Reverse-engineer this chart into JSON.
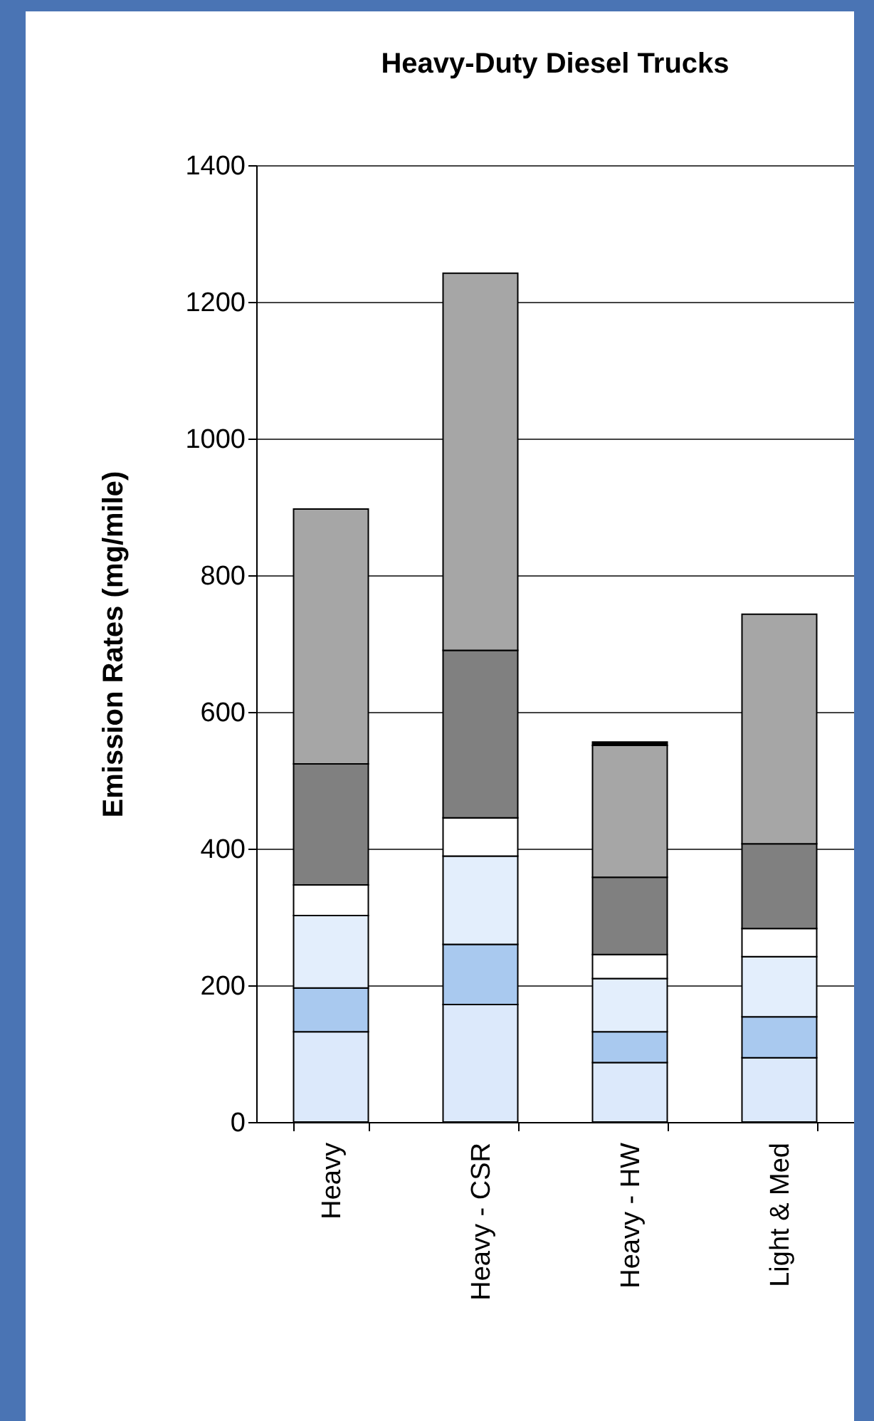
{
  "chart_data": {
    "type": "bar",
    "title": "Heavy-Duty Diesel Trucks",
    "ylabel": "Emission Rates (mg/mile)",
    "categories": [
      "Heavy",
      "Heavy - CSR",
      "Heavy - HW",
      "Light & Med"
    ],
    "stacked": true,
    "ylim": [
      0,
      1400
    ],
    "yticks": [
      0,
      200,
      400,
      600,
      800,
      1000,
      1200,
      1400
    ],
    "grid": "y",
    "legend": false,
    "series": [
      {
        "color": "#dce9fb",
        "values": [
          132,
          172,
          87,
          94
        ]
      },
      {
        "color": "#a9c9ef",
        "values": [
          64,
          88,
          45,
          60
        ]
      },
      {
        "color": "#e3eefc",
        "values": [
          106,
          129,
          78,
          88
        ]
      },
      {
        "color": "#ffffff",
        "values": [
          45,
          56,
          35,
          41
        ]
      },
      {
        "color": "#808080",
        "values": [
          177,
          245,
          113,
          124
        ]
      },
      {
        "color": "#a6a6a6",
        "values": [
          373,
          552,
          193,
          336
        ]
      },
      {
        "color": "#000000",
        "values": [
          null,
          null,
          5,
          null
        ]
      }
    ]
  }
}
